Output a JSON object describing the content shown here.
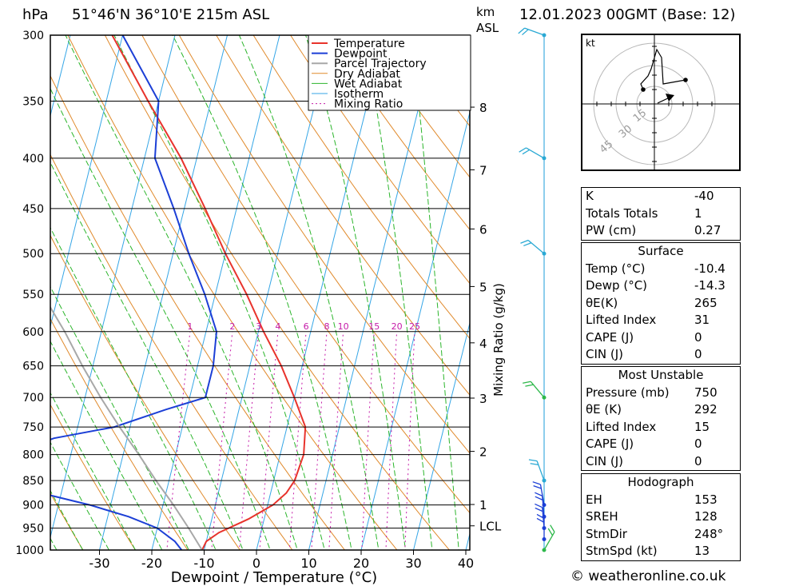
{
  "header": {
    "pressure_unit": "hPa",
    "location": "51°46'N  36°10'E  215m  ASL",
    "km_unit": "km",
    "asl_label": "ASL",
    "datetime": "12.01.2023  00GMT  (Base: 12)"
  },
  "chart_data": {
    "type": "line",
    "xlabel": "Dewpoint / Temperature (°C)",
    "ylabel": "hPa",
    "xlim": [
      -40,
      40
    ],
    "ylim": [
      1000,
      300
    ],
    "pressure_ticks": [
      300,
      350,
      400,
      450,
      500,
      550,
      600,
      650,
      700,
      750,
      800,
      850,
      900,
      950,
      1000
    ],
    "temperature_ticks": [
      -30,
      -20,
      -10,
      0,
      10,
      20,
      30,
      40
    ],
    "height_ticks_km": [
      {
        "label": "8",
        "p": 355
      },
      {
        "label": "7",
        "p": 411
      },
      {
        "label": "6",
        "p": 472
      },
      {
        "label": "5",
        "p": 540
      },
      {
        "label": "4",
        "p": 616
      },
      {
        "label": "3",
        "p": 701
      },
      {
        "label": "2",
        "p": 794
      },
      {
        "label": "1",
        "p": 899
      },
      {
        "label": "LCL",
        "p": 945
      }
    ],
    "mixing_ratio_axis_label": "Mixing Ratio (g/kg)",
    "mixing_ratio_labels": [
      "1",
      "2",
      "3",
      "4",
      "6",
      "8",
      "10",
      "15",
      "20",
      "25"
    ],
    "mixing_ratio_values": [
      1,
      2,
      3,
      4,
      6,
      8,
      10,
      15,
      20,
      25
    ],
    "legend": [
      "Temperature",
      "Dewpoint",
      "Parcel Trajectory",
      "Dry Adiabat",
      "Wet Adiabat",
      "Isotherm",
      "Mixing Ratio"
    ],
    "legend_position": "top-right",
    "series": [
      {
        "name": "Temperature",
        "color": "#e8332c",
        "points": [
          [
            1000,
            -10.4
          ],
          [
            980,
            -10
          ],
          [
            960,
            -8
          ],
          [
            930,
            -3
          ],
          [
            900,
            1
          ],
          [
            875,
            3
          ],
          [
            850,
            4
          ],
          [
            800,
            4.5
          ],
          [
            750,
            3.5
          ],
          [
            700,
            0
          ],
          [
            650,
            -4
          ],
          [
            600,
            -9
          ],
          [
            550,
            -14
          ],
          [
            500,
            -20
          ],
          [
            450,
            -26
          ],
          [
            400,
            -33
          ],
          [
            350,
            -42
          ],
          [
            300,
            -52
          ]
        ]
      },
      {
        "name": "Dewpoint",
        "color": "#1c3fd6",
        "points": [
          [
            1000,
            -14.3
          ],
          [
            980,
            -16
          ],
          [
            950,
            -20
          ],
          [
            925,
            -26
          ],
          [
            900,
            -34
          ],
          [
            870,
            -46
          ],
          [
            850,
            -52
          ],
          [
            800,
            -52
          ],
          [
            770,
            -44
          ],
          [
            750,
            -33
          ],
          [
            720,
            -24
          ],
          [
            700,
            -17
          ],
          [
            650,
            -17
          ],
          [
            600,
            -18
          ],
          [
            550,
            -22
          ],
          [
            500,
            -27
          ],
          [
            450,
            -32
          ],
          [
            400,
            -38
          ],
          [
            350,
            -40
          ],
          [
            300,
            -50
          ]
        ]
      },
      {
        "name": "Parcel Trajectory",
        "color": "#a8a8a8",
        "points": [
          [
            1000,
            -10.4
          ],
          [
            950,
            -14
          ],
          [
            900,
            -18
          ],
          [
            850,
            -22.5
          ],
          [
            800,
            -27
          ],
          [
            750,
            -32
          ],
          [
            700,
            -37
          ],
          [
            650,
            -42
          ],
          [
            600,
            -47
          ],
          [
            550,
            -53
          ],
          [
            500,
            -60
          ],
          [
            450,
            -67
          ],
          [
            400,
            -75
          ]
        ]
      }
    ]
  },
  "hodograph": {
    "unit": "kt",
    "ring_labels": [
      "15",
      "30",
      "45"
    ],
    "color": "#000000"
  },
  "indices": {
    "top": [
      {
        "label": "K",
        "value": "-40"
      },
      {
        "label": "Totals Totals",
        "value": "1"
      },
      {
        "label": "PW (cm)",
        "value": "0.27"
      }
    ],
    "surface": {
      "title": "Surface",
      "rows": [
        {
          "label": "Temp (°C)",
          "value": "-10.4"
        },
        {
          "label": "Dewp (°C)",
          "value": "-14.3"
        },
        {
          "label": "θE(K)",
          "value": "265"
        },
        {
          "label": "Lifted Index",
          "value": "31"
        },
        {
          "label": "CAPE (J)",
          "value": "0"
        },
        {
          "label": "CIN (J)",
          "value": "0"
        }
      ]
    },
    "most_unstable": {
      "title": "Most Unstable",
      "rows": [
        {
          "label": "Pressure (mb)",
          "value": "750"
        },
        {
          "label": "θE (K)",
          "value": "292"
        },
        {
          "label": "Lifted Index",
          "value": "15"
        },
        {
          "label": "CAPE (J)",
          "value": "0"
        },
        {
          "label": "CIN (J)",
          "value": "0"
        }
      ]
    },
    "hodograph": {
      "title": "Hodograph",
      "rows": [
        {
          "label": "EH",
          "value": "153"
        },
        {
          "label": "SREH",
          "value": "128"
        },
        {
          "label": "StmDir",
          "value": "248°"
        },
        {
          "label": "StmSpd (kt)",
          "value": "13"
        }
      ]
    }
  },
  "credit": "© weatheronline.co.uk",
  "colors": {
    "temperature": "#e8332c",
    "dewpoint": "#1c3fd6",
    "parcel": "#a8a8a8",
    "dry_adiabat": "#e08a2c",
    "wet_adiabat": "#2bb52b",
    "isotherm": "#35a6e6",
    "mixing_ratio": "#c51aa8"
  }
}
